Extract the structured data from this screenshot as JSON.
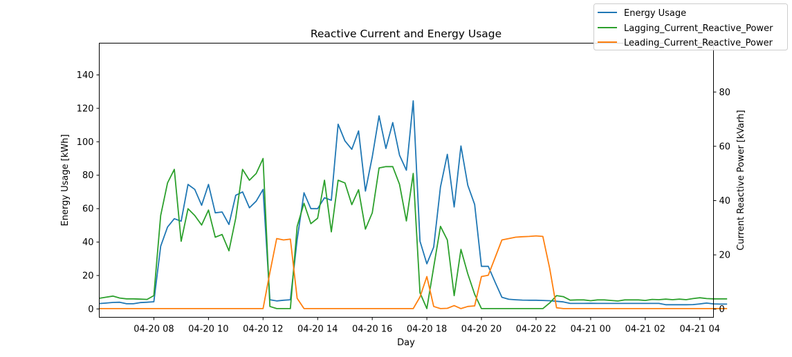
{
  "chart_data": {
    "type": "line",
    "title": "Reactive Current and Energy Usage",
    "xlabel": "Day",
    "ylabel_left": "Energy Usage [kWh]",
    "ylabel_right": "Current Reactive Power [kVarh]",
    "x_start": "04-20 06:00",
    "x_step_minutes": 15,
    "x_ticks": [
      "04-20 08",
      "04-20 10",
      "04-20 12",
      "04-20 14",
      "04-20 16",
      "04-20 18",
      "04-20 20",
      "04-20 22",
      "04-21 00",
      "04-21 02",
      "04-21 04"
    ],
    "x_range": [
      "04-20 06:00",
      "04-21 04:30"
    ],
    "ylim_left": [
      -5,
      159
    ],
    "yticks_left": [
      0,
      20,
      40,
      60,
      80,
      100,
      120,
      140
    ],
    "ylim_right": [
      -3,
      98
    ],
    "yticks_right": [
      0,
      20,
      40,
      60,
      80
    ],
    "legend_position": "upper right",
    "grid": false,
    "colors": {
      "energy": "#1f77b4",
      "lagging": "#2ca02c",
      "leading": "#ff7f0e"
    },
    "series": [
      {
        "name": "Energy Usage",
        "axis": "left",
        "values": [
          3.2,
          3.5,
          3.9,
          4.0,
          3.1,
          3.1,
          3.8,
          4.0,
          4.3,
          37.5,
          49,
          54,
          52.5,
          74.5,
          71.5,
          62,
          74.5,
          57.5,
          58,
          50.5,
          68,
          70,
          60.5,
          64.5,
          71.5,
          5.5,
          4.8,
          5.2,
          5.5,
          41.5,
          69.5,
          60,
          60,
          66.5,
          65,
          110.5,
          100.5,
          95.5,
          106.5,
          70.5,
          91,
          115.5,
          96,
          111.5,
          92,
          83,
          124.5,
          40.5,
          27,
          37,
          73,
          92.5,
          61,
          97.5,
          74,
          62.5,
          25.5,
          25.5,
          16,
          7,
          5.8,
          5.5,
          5.3,
          5.2,
          5.2,
          5.1,
          4.9,
          4.6,
          4.2,
          3.3,
          3.3,
          3.3,
          3.4,
          3.3,
          3.3,
          3.3,
          3.3,
          3.3,
          3.3,
          3.3,
          3.3,
          3.3,
          3.3,
          2.5,
          2.5,
          2.5,
          2.5,
          2.6,
          3.0,
          3.5,
          3.0,
          2.9,
          2.9
        ]
      },
      {
        "name": "Lagging_Current_Reactive_Power",
        "axis": "right",
        "values": [
          4,
          4.4,
          4.8,
          4.1,
          3.8,
          3.8,
          3.7,
          3.6,
          5.0,
          34.5,
          46.5,
          51.5,
          25,
          37,
          34.5,
          31,
          36.5,
          26.5,
          27.5,
          21.5,
          33.5,
          51.5,
          47.5,
          50,
          55.5,
          1,
          0.2,
          0.2,
          0.2,
          30.5,
          39,
          31.5,
          33.5,
          47.5,
          28.5,
          47.5,
          46.5,
          38.5,
          44,
          29.5,
          35.5,
          52,
          52.5,
          52.5,
          46,
          32.5,
          50,
          6,
          0.2,
          15.5,
          30.5,
          25.5,
          5,
          22,
          13,
          5.5,
          0.2,
          0.2,
          0.2,
          0.2,
          0.2,
          0.2,
          0.2,
          0.2,
          0.2,
          0.2,
          2.3,
          5,
          4.6,
          3.3,
          3.4,
          3.4,
          3.1,
          3.4,
          3.4,
          3.2,
          3,
          3.4,
          3.4,
          3.4,
          3.2,
          3.6,
          3.5,
          3.7,
          3.5,
          3.7,
          3.5,
          3.9,
          4.2,
          3.9,
          3.8,
          3.8,
          3.8
        ]
      },
      {
        "name": "Leading_Current_Reactive_Power",
        "axis": "right",
        "values": [
          0.2,
          0.2,
          0.2,
          0.2,
          0.2,
          0.2,
          0.2,
          0.2,
          0.2,
          0.2,
          0.2,
          0.2,
          0.2,
          0.2,
          0.2,
          0.2,
          0.2,
          0.2,
          0.2,
          0.2,
          0.2,
          0.2,
          0.2,
          0.2,
          0.2,
          13.5,
          26,
          25.5,
          25.8,
          4,
          0.2,
          0.2,
          0.2,
          0.2,
          0.2,
          0.2,
          0.2,
          0.2,
          0.2,
          0.2,
          0.2,
          0.2,
          0.2,
          0.2,
          0.2,
          0.2,
          0.2,
          4.5,
          12,
          1,
          0.2,
          0.3,
          1.3,
          0.2,
          1,
          1.2,
          12,
          12.5,
          19,
          25.5,
          26,
          26.5,
          26.7,
          26.8,
          27,
          26.8,
          15,
          0.5,
          0.2,
          0.2,
          0.2,
          0.2,
          0.2,
          0.2,
          0.2,
          0.2,
          0.2,
          0.2,
          0.2,
          0.2,
          0.2,
          0.2,
          0.2,
          0.2,
          0.2,
          0.2,
          0.2,
          0.2,
          0.2,
          0.2,
          0.2,
          0.2,
          0.2
        ]
      }
    ]
  }
}
